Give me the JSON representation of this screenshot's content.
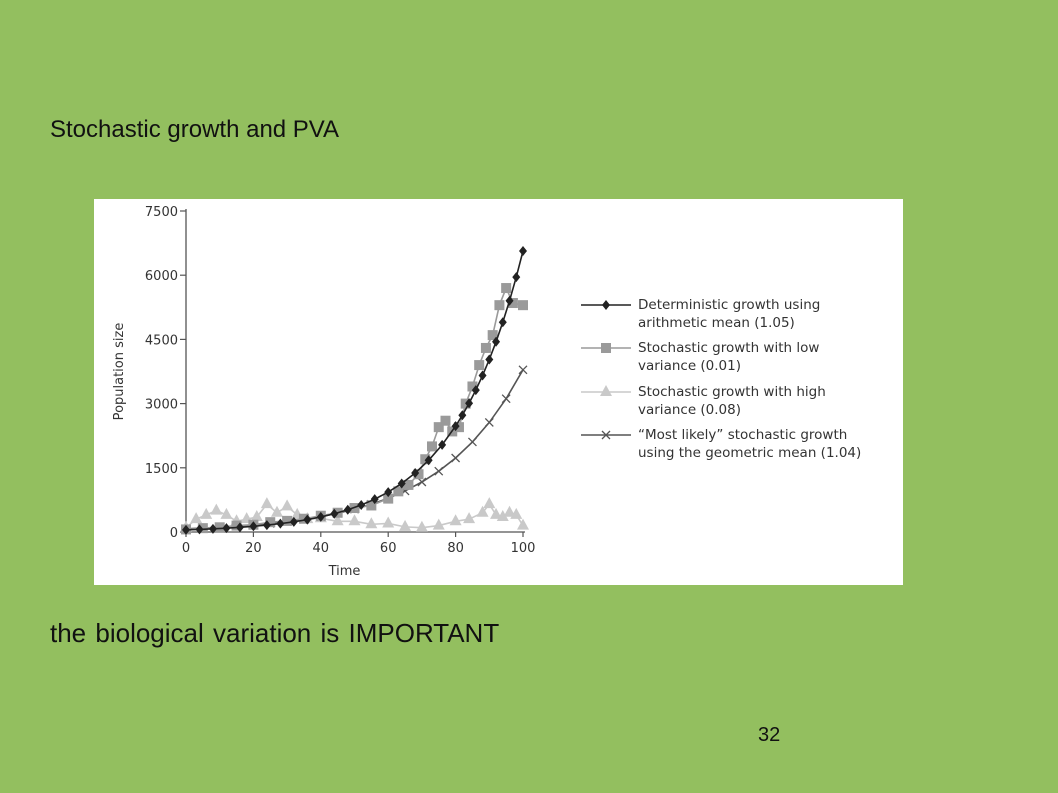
{
  "slide": {
    "title": "Stochastic growth and PVA",
    "caption": "the biological variation is IMPORTANT",
    "page_number": "32"
  },
  "chart_data": {
    "type": "line",
    "xlabel": "Time",
    "ylabel": "Population size",
    "xlim": [
      0,
      100
    ],
    "ylim": [
      0,
      7500
    ],
    "xticks": [
      0,
      20,
      40,
      60,
      80,
      100
    ],
    "yticks": [
      0,
      1500,
      3000,
      4500,
      6000,
      7500
    ],
    "legend_position": "right",
    "series": [
      {
        "name": "Deterministic growth using arithmetic mean (1.05)",
        "legend_lines": [
          "Deterministic growth using",
          "arithmetic mean (1.05)"
        ],
        "marker": "diamond",
        "color": "#222222",
        "x": [
          0,
          4,
          8,
          12,
          16,
          20,
          24,
          28,
          32,
          36,
          40,
          44,
          48,
          52,
          56,
          60,
          64,
          68,
          72,
          76,
          80,
          82,
          84,
          86,
          88,
          90,
          92,
          94,
          96,
          98,
          100
        ],
        "values": [
          50,
          61,
          74,
          90,
          109,
          133,
          161,
          196,
          238,
          289,
          352,
          427,
          519,
          631,
          767,
          933,
          1134,
          1378,
          1675,
          2036,
          2474,
          2728,
          3008,
          3316,
          3656,
          4031,
          4444,
          4900,
          5402,
          5956,
          6566
        ]
      },
      {
        "name": "Stochastic growth with low variance (0.01)",
        "legend_lines": [
          "Stochastic growth with low",
          "variance (0.01)"
        ],
        "marker": "square",
        "color": "#9a9a9a",
        "x": [
          0,
          5,
          10,
          15,
          20,
          25,
          30,
          35,
          40,
          45,
          50,
          55,
          60,
          63,
          66,
          69,
          71,
          73,
          75,
          77,
          79,
          81,
          83,
          85,
          87,
          89,
          91,
          93,
          95,
          97,
          100
        ],
        "values": [
          60,
          90,
          110,
          150,
          170,
          230,
          260,
          310,
          380,
          450,
          560,
          620,
          780,
          950,
          1100,
          1350,
          1700,
          2000,
          2450,
          2600,
          2350,
          2450,
          3000,
          3400,
          3900,
          4300,
          4600,
          5300,
          5700,
          5350,
          5300
        ]
      },
      {
        "name": "Stochastic growth with high variance (0.08)",
        "legend_lines": [
          "Stochastic growth with high",
          "variance (0.08)"
        ],
        "marker": "triangle",
        "color": "#c9c9c9",
        "x": [
          0,
          3,
          6,
          9,
          12,
          15,
          18,
          21,
          24,
          27,
          30,
          33,
          36,
          40,
          45,
          50,
          55,
          60,
          65,
          70,
          75,
          80,
          84,
          88,
          90,
          92,
          94,
          96,
          98,
          100
        ],
        "values": [
          100,
          300,
          400,
          500,
          400,
          250,
          300,
          350,
          650,
          450,
          600,
          400,
          300,
          320,
          250,
          250,
          180,
          200,
          120,
          100,
          150,
          250,
          300,
          450,
          650,
          400,
          350,
          450,
          400,
          150
        ]
      },
      {
        "name": "“Most likely” stochastic growth using the geometric mean (1.04)",
        "legend_lines": [
          "“Most likely” stochastic growth",
          "using the geometric mean (1.04)"
        ],
        "marker": "x",
        "color": "#555555",
        "x": [
          0,
          5,
          10,
          15,
          20,
          25,
          30,
          35,
          40,
          45,
          50,
          55,
          60,
          65,
          70,
          75,
          80,
          85,
          90,
          95,
          100
        ],
        "values": [
          75,
          91,
          111,
          135,
          164,
          200,
          243,
          296,
          360,
          438,
          533,
          648,
          789,
          960,
          1168,
          1421,
          1729,
          2104,
          2560,
          3115,
          3790
        ]
      }
    ]
  }
}
